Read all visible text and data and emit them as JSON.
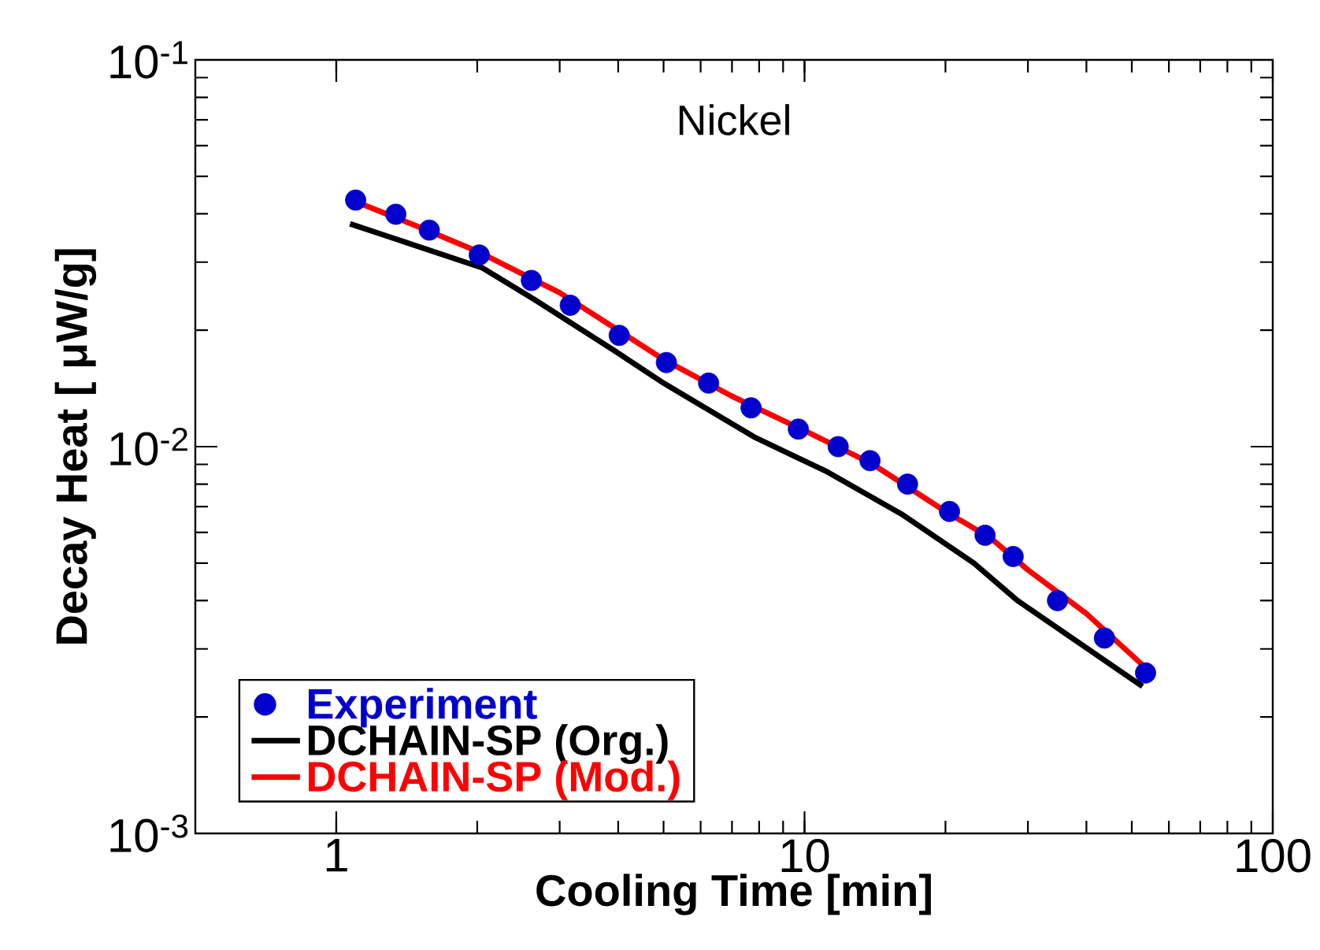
{
  "chart_data": {
    "type": "scatter",
    "title": "Nickel",
    "xlabel": "Cooling Time [min]",
    "ylabel": "Decay Heat  [ μW/g]",
    "log": "xy",
    "xlim": [
      0.5,
      100
    ],
    "ylim": [
      0.001,
      0.1
    ],
    "xticks": [
      1,
      10,
      100
    ],
    "yticks": [
      {
        "value": 0.001,
        "label": "10$^{-3}$"
      },
      {
        "value": 0.01,
        "label": "10$^{-2}$"
      },
      {
        "value": 0.1,
        "label": "10$^{-1}$"
      }
    ],
    "legend": "bottom left",
    "grid": false,
    "series": [
      {
        "name": "Experiment",
        "marker": "circle",
        "color": "#0000cc",
        "x": [
          1.1,
          1.34,
          1.58,
          2.02,
          2.61,
          3.16,
          4.02,
          5.07,
          6.24,
          7.69,
          9.7,
          11.8,
          13.8,
          16.6,
          20.4,
          24.3,
          27.9,
          34.7,
          43.7,
          53.5
        ],
        "values": [
          0.0434,
          0.0399,
          0.0363,
          0.0313,
          0.0269,
          0.0232,
          0.0194,
          0.0165,
          0.0146,
          0.0126,
          0.0111,
          0.01,
          0.0092,
          0.008,
          0.0068,
          0.0059,
          0.0052,
          0.004,
          0.0032,
          0.0026
        ]
      },
      {
        "name": "DCHAIN-SP (Org.)",
        "type": "line",
        "marker": "none",
        "line_style": "solid",
        "color": "#000000",
        "x": [
          1.07,
          2.05,
          2.65,
          3.9,
          5.0,
          7.8,
          11.2,
          16.1,
          23,
          28.5,
          52.7
        ],
        "values": [
          0.0377,
          0.029,
          0.024,
          0.0178,
          0.0146,
          0.0106,
          0.0086,
          0.0067,
          0.005,
          0.004,
          0.0024
        ]
      },
      {
        "name": "DCHAIN-SP (Mod.)",
        "type": "line",
        "marker": "none",
        "line_style": "solid",
        "color": "#ff0000",
        "x": [
          1.1,
          1.5,
          2,
          3,
          4,
          5,
          7,
          10,
          14,
          20,
          25,
          30,
          40,
          55
        ],
        "values": [
          0.043,
          0.037,
          0.032,
          0.025,
          0.02,
          0.0168,
          0.0135,
          0.011,
          0.009,
          0.0068,
          0.0058,
          0.0048,
          0.0037,
          0.0026
        ]
      }
    ]
  }
}
